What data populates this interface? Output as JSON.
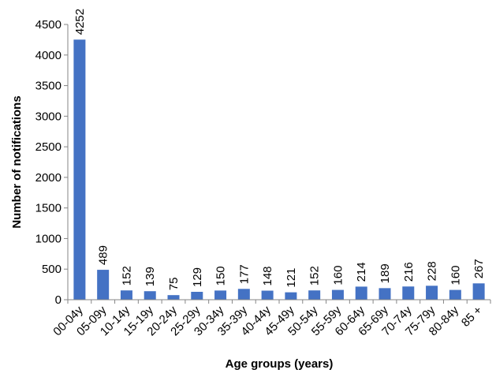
{
  "chart_data": {
    "type": "bar",
    "title": "",
    "xlabel": "Age groups (years)",
    "ylabel": "Number of notifications",
    "ylim": [
      0,
      4500
    ],
    "yticks": [
      0,
      500,
      1000,
      1500,
      2000,
      2500,
      3000,
      3500,
      4000,
      4500
    ],
    "grid": false,
    "legend": "none",
    "bar_color": "#4472C4",
    "categories": [
      "00-04y",
      "05-09y",
      "10-14y",
      "15-19y",
      "20-24y",
      "25-29y",
      "30-34y",
      "35-39y",
      "40-44y",
      "45-49y",
      "50-54y",
      "55-59y",
      "60-64y",
      "65-69y",
      "70-74y",
      "75-79y",
      "80-84y",
      "85 +"
    ],
    "values": [
      4252,
      489,
      152,
      139,
      75,
      129,
      150,
      177,
      148,
      121,
      152,
      160,
      214,
      189,
      216,
      228,
      160,
      267
    ],
    "data_labels": [
      "4252",
      "489",
      "152",
      "139",
      "75",
      "129",
      "150",
      "177",
      "148",
      "121",
      "152",
      "160",
      "214",
      "189",
      "216",
      "228",
      "160",
      "267"
    ]
  }
}
